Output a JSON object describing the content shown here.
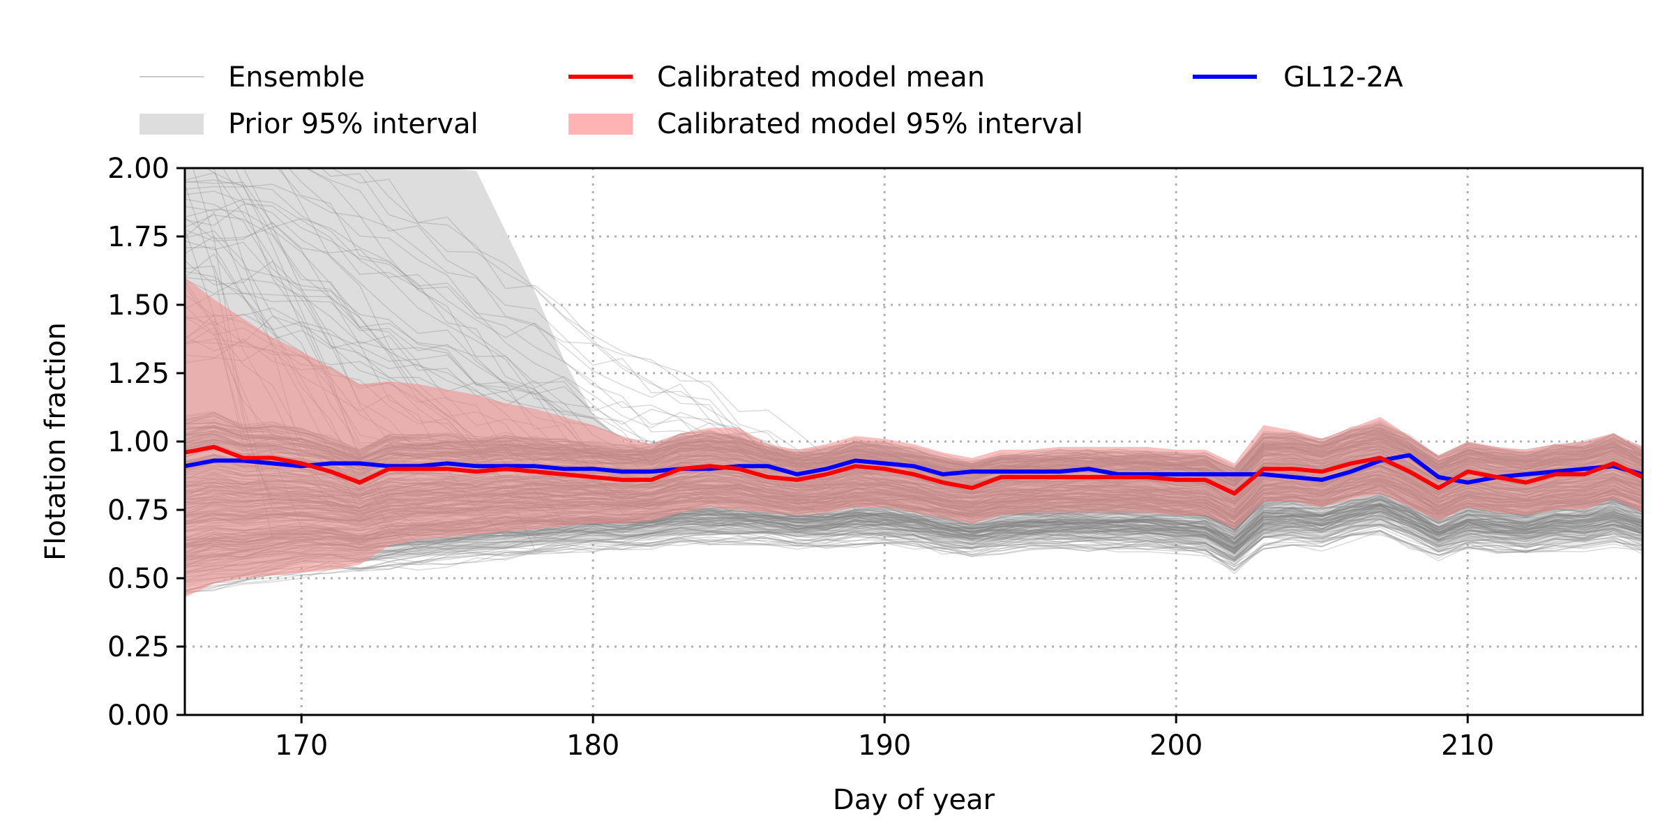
{
  "chart_data": {
    "type": "line",
    "xlabel": "Day of year",
    "ylabel": "Flotation fraction",
    "xlim": [
      166,
      216
    ],
    "ylim": [
      0,
      2
    ],
    "x_ticks": [
      170,
      180,
      190,
      200,
      210
    ],
    "y_ticks": [
      0.0,
      0.25,
      0.5,
      0.75,
      1.0,
      1.25,
      1.5,
      1.75,
      2.0
    ],
    "x_tick_labels": [
      "170",
      "180",
      "190",
      "200",
      "210"
    ],
    "y_tick_labels": [
      "0.00",
      "0.25",
      "0.50",
      "0.75",
      "1.00",
      "1.25",
      "1.50",
      "1.75",
      "2.00"
    ],
    "grid": true,
    "legend_position": "top",
    "legend": {
      "ensemble": "Ensemble",
      "prior": "Prior 95% interval",
      "cal_mean": "Calibrated model mean",
      "cal_interval": "Calibrated model 95% interval",
      "obs": "GL12-2A"
    },
    "colors": {
      "ensemble": "#808080",
      "prior": "#dddddd",
      "cal_mean": "#ff0000",
      "cal_interval": "#f28a8a",
      "obs": "#0000ff"
    },
    "x": [
      166,
      167,
      168,
      169,
      170,
      171,
      172,
      173,
      174,
      175,
      176,
      177,
      178,
      179,
      180,
      181,
      182,
      183,
      184,
      185,
      186,
      187,
      188,
      189,
      190,
      191,
      192,
      193,
      194,
      195,
      196,
      197,
      198,
      199,
      200,
      201,
      202,
      203,
      204,
      205,
      206,
      207,
      208,
      209,
      210,
      211,
      212,
      213,
      214,
      215,
      216
    ],
    "series": [
      {
        "name": "GL12-2A",
        "values": [
          0.91,
          0.93,
          0.93,
          0.92,
          0.91,
          0.92,
          0.92,
          0.91,
          0.91,
          0.92,
          0.91,
          0.91,
          0.91,
          0.9,
          0.9,
          0.89,
          0.89,
          0.9,
          0.9,
          0.91,
          0.91,
          0.88,
          0.9,
          0.93,
          0.92,
          0.91,
          0.88,
          0.89,
          0.89,
          0.89,
          0.89,
          0.9,
          0.88,
          0.88,
          0.88,
          0.88,
          0.88,
          0.88,
          0.87,
          0.86,
          0.89,
          0.93,
          0.95,
          0.87,
          0.85,
          0.87,
          0.88,
          0.89,
          0.9,
          0.91,
          0.88
        ]
      },
      {
        "name": "Calibrated model mean",
        "values": [
          0.96,
          0.98,
          0.94,
          0.94,
          0.92,
          0.89,
          0.85,
          0.9,
          0.9,
          0.9,
          0.89,
          0.9,
          0.89,
          0.88,
          0.87,
          0.86,
          0.86,
          0.9,
          0.91,
          0.9,
          0.87,
          0.86,
          0.88,
          0.91,
          0.9,
          0.88,
          0.85,
          0.83,
          0.87,
          0.87,
          0.87,
          0.87,
          0.87,
          0.87,
          0.86,
          0.86,
          0.81,
          0.9,
          0.9,
          0.89,
          0.92,
          0.94,
          0.89,
          0.83,
          0.89,
          0.87,
          0.85,
          0.88,
          0.88,
          0.92,
          0.87
        ]
      }
    ],
    "bands": [
      {
        "name": "Prior 95% interval",
        "lower": [
          0.47,
          0.49,
          0.51,
          0.53,
          0.55,
          0.56,
          0.56,
          0.57,
          0.58,
          0.59,
          0.6,
          0.61,
          0.62,
          0.63,
          0.64,
          0.64,
          0.65,
          0.66,
          0.66,
          0.66,
          0.66,
          0.65,
          0.65,
          0.66,
          0.66,
          0.65,
          0.63,
          0.62,
          0.63,
          0.64,
          0.64,
          0.64,
          0.64,
          0.64,
          0.63,
          0.62,
          0.56,
          0.65,
          0.66,
          0.65,
          0.68,
          0.7,
          0.66,
          0.61,
          0.64,
          0.63,
          0.62,
          0.64,
          0.64,
          0.66,
          0.63
        ],
        "upper": [
          2.0,
          2.0,
          2.0,
          2.0,
          2.0,
          2.0,
          2.0,
          2.0,
          2.0,
          2.0,
          1.99,
          1.77,
          1.55,
          1.3,
          1.1,
          1.0,
          0.98,
          1.02,
          1.03,
          1.02,
          0.98,
          0.96,
          0.97,
          1.0,
          0.99,
          0.97,
          0.94,
          0.92,
          0.95,
          0.95,
          0.96,
          0.96,
          0.96,
          0.96,
          0.95,
          0.95,
          0.9,
          1.04,
          1.03,
          1.0,
          1.04,
          1.08,
          1.02,
          0.94,
          0.99,
          0.97,
          0.96,
          0.98,
          0.99,
          1.02,
          0.97
        ]
      },
      {
        "name": "Calibrated model 95% interval",
        "lower": [
          0.43,
          0.48,
          0.5,
          0.51,
          0.52,
          0.53,
          0.55,
          0.62,
          0.64,
          0.65,
          0.66,
          0.67,
          0.68,
          0.69,
          0.7,
          0.7,
          0.71,
          0.74,
          0.76,
          0.75,
          0.74,
          0.73,
          0.74,
          0.76,
          0.76,
          0.74,
          0.72,
          0.7,
          0.73,
          0.74,
          0.74,
          0.74,
          0.74,
          0.74,
          0.73,
          0.73,
          0.68,
          0.78,
          0.78,
          0.76,
          0.79,
          0.81,
          0.76,
          0.71,
          0.76,
          0.74,
          0.73,
          0.75,
          0.75,
          0.79,
          0.74
        ],
        "upper": [
          1.6,
          1.52,
          1.45,
          1.38,
          1.33,
          1.27,
          1.21,
          1.22,
          1.21,
          1.19,
          1.17,
          1.14,
          1.12,
          1.09,
          1.06,
          1.02,
          0.99,
          1.03,
          1.05,
          1.05,
          0.99,
          0.97,
          0.99,
          1.02,
          1.01,
          0.99,
          0.96,
          0.94,
          0.97,
          0.97,
          0.98,
          0.98,
          0.98,
          0.98,
          0.97,
          0.97,
          0.92,
          1.06,
          1.04,
          1.01,
          1.05,
          1.09,
          1.02,
          0.95,
          1.0,
          0.98,
          0.97,
          0.99,
          1.0,
          1.03,
          0.98
        ]
      }
    ],
    "ensemble_members": 300
  }
}
